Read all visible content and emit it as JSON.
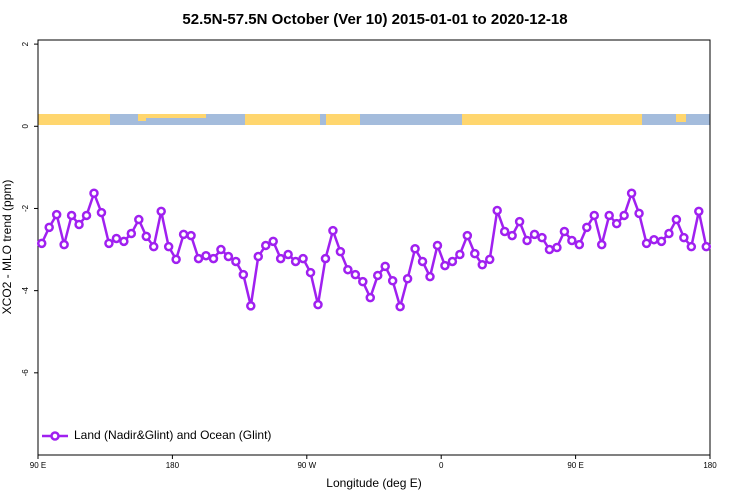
{
  "chart_data": {
    "type": "line",
    "title": "52.5N-57.5N October (Ver 10)   2015-01-01 to 2020-12-18",
    "x_label": "Longitude (deg E)",
    "y_label": "XCO2 - MLO trend (ppm)",
    "x": [
      92.5,
      97.5,
      102.5,
      107.5,
      112.5,
      117.5,
      122.5,
      127.5,
      132.5,
      137.5,
      142.5,
      147.5,
      152.5,
      157.5,
      162.5,
      167.5,
      172.5,
      177.5,
      182.5,
      187.5,
      192.5,
      197.5,
      202.5,
      207.5,
      212.5,
      217.5,
      222.5,
      227.5,
      232.5,
      237.5,
      242.5,
      247.5,
      252.5,
      257.5,
      262.5,
      267.5,
      272.5,
      277.5,
      282.5,
      287.5,
      292.5,
      297.5,
      302.5,
      307.5,
      312.5,
      317.5,
      322.5,
      327.5,
      332.5,
      337.5,
      342.5,
      347.5,
      352.5,
      357.5,
      362.5,
      367.5,
      372.5,
      377.5,
      382.5,
      387.5,
      392.5,
      397.5,
      402.5,
      407.5,
      412.5,
      417.5,
      422.5,
      427.5,
      432.5,
      437.5,
      442.5,
      447.5,
      452.5,
      457.5,
      462.5,
      467.5,
      472.5,
      477.5,
      482.5,
      487.5,
      492.5,
      497.5,
      502.5,
      507.5,
      512.5,
      517.5,
      522.5,
      527.5,
      532.5,
      537.5
    ],
    "series": [
      {
        "name": "Land (Nadir&Glint) and Ocean (Glint)",
        "color": "#a020f0",
        "values": [
          -2.85,
          -2.46,
          -2.15,
          -2.88,
          -2.17,
          -2.39,
          -2.17,
          -1.63,
          -2.1,
          -2.85,
          -2.73,
          -2.8,
          -2.61,
          -2.27,
          -2.68,
          -2.93,
          -2.07,
          -2.93,
          -3.24,
          -2.63,
          -2.66,
          -3.22,
          -3.15,
          -3.22,
          -3.0,
          -3.17,
          -3.29,
          -3.61,
          -4.37,
          -3.17,
          -2.9,
          -2.8,
          -3.22,
          -3.12,
          -3.29,
          -3.22,
          -3.56,
          -4.34,
          -3.22,
          -2.54,
          -3.05,
          -3.49,
          -3.61,
          -3.78,
          -4.17,
          -3.63,
          -3.41,
          -3.76,
          -4.39,
          -3.71,
          -2.98,
          -3.29,
          -3.66,
          -2.9,
          -3.39,
          -3.29,
          -3.12,
          -2.66,
          -3.1,
          -3.37,
          -3.24,
          -2.05,
          -2.56,
          -2.66,
          -2.32,
          -2.78,
          -2.63,
          -2.71,
          -3.0,
          -2.95,
          -2.56,
          -2.78,
          -2.88,
          -2.46,
          -2.17,
          -2.88,
          -2.17,
          -2.37,
          -2.17,
          -1.63,
          -2.12,
          -2.85,
          -2.76,
          -2.8,
          -2.61,
          -2.27,
          -2.71,
          -2.93,
          -2.07,
          -2.93
        ]
      }
    ],
    "xlim": [
      90,
      540
    ],
    "xticks": [
      {
        "value": 90,
        "label": "90 E"
      },
      180,
      {
        "value": 270,
        "label": "90 W"
      },
      {
        "value": 360,
        "label": "0"
      },
      {
        "value": 450,
        "label": "90 E"
      },
      {
        "value": 540,
        "label": "180"
      }
    ],
    "ylim": [
      -8,
      2.1
    ],
    "yticks": [
      2,
      0,
      -2,
      -4,
      -6
    ],
    "legend": "bottom-left"
  }
}
